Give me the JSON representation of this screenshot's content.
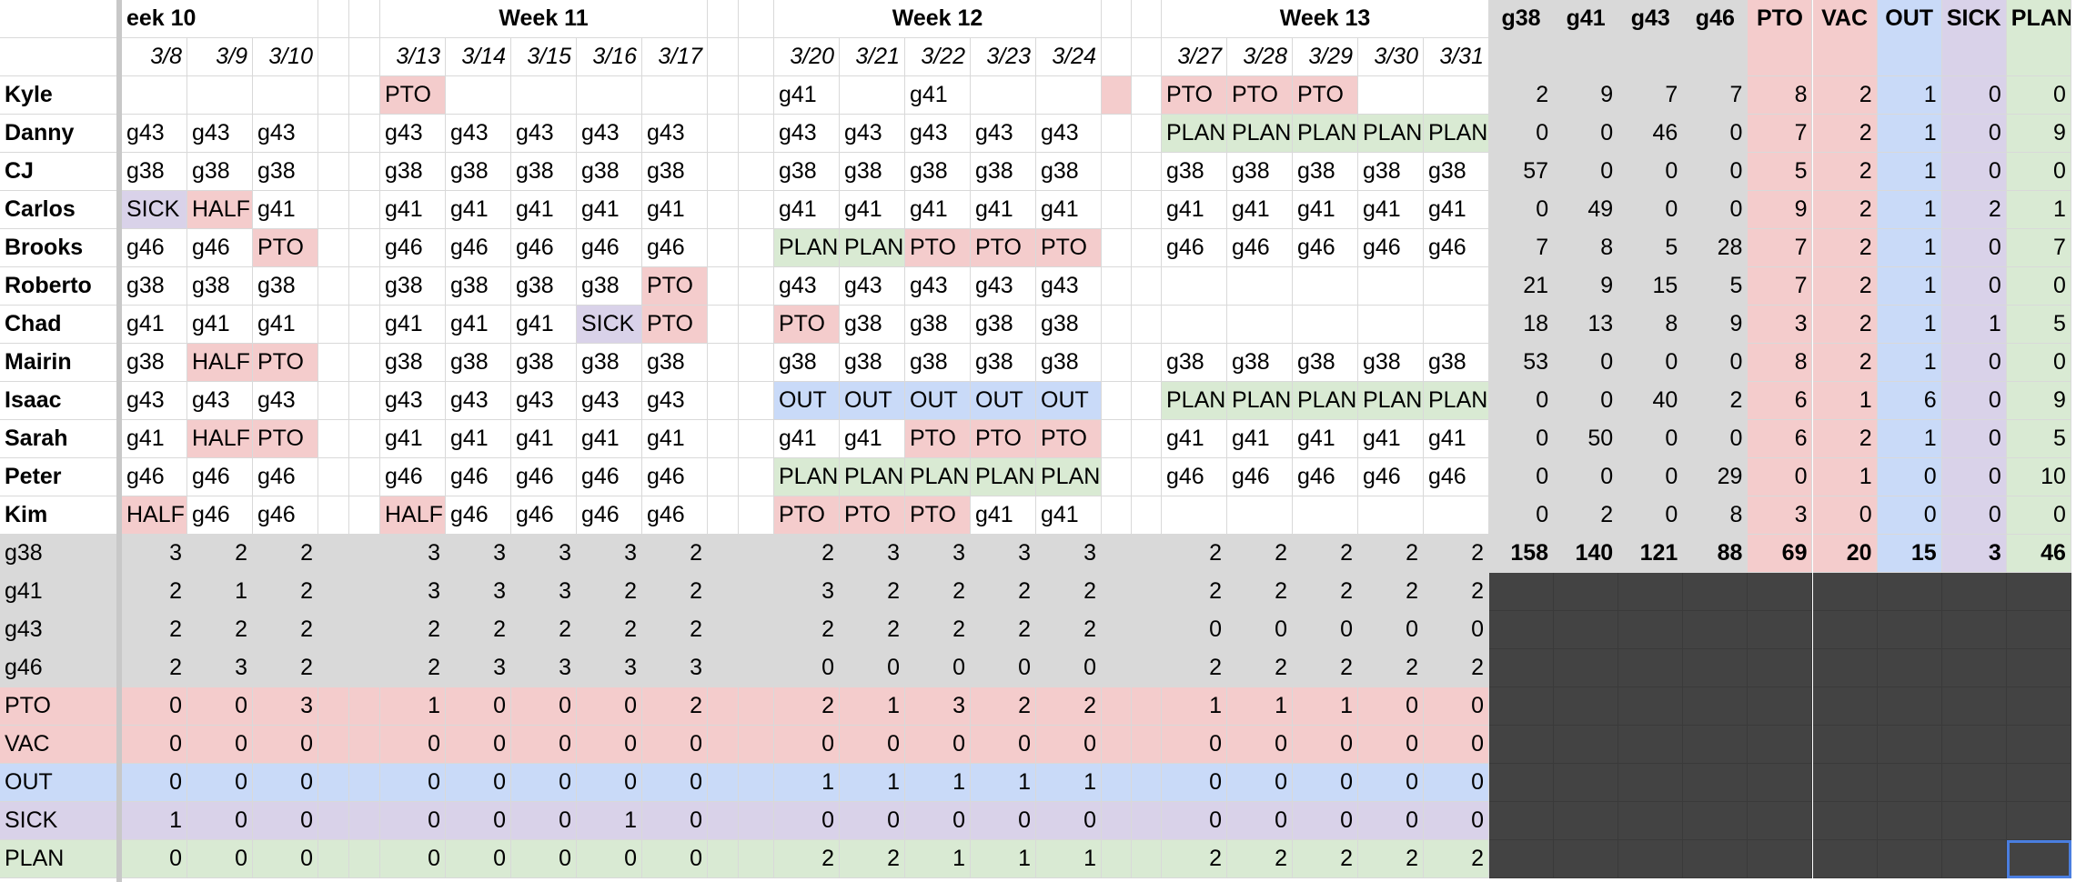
{
  "colors": {
    "gray": "#d9d9d9",
    "pto": "#f4cccc",
    "out": "#c9daf8",
    "sick": "#d9d2e9",
    "plan": "#d9ead3",
    "dark": "#434343",
    "border": "#d9d9d9",
    "selection": "#4a7ee0"
  },
  "weeks": [
    "Week 10",
    "Week 11",
    "Week 12",
    "Week 13"
  ],
  "week10_visible_label": "eek 10",
  "dates": [
    [
      "3/8",
      "3/9",
      "3/10"
    ],
    [
      "3/13",
      "3/14",
      "3/15",
      "3/16",
      "3/17"
    ],
    [
      "3/20",
      "3/21",
      "3/22",
      "3/23",
      "3/24"
    ],
    [
      "3/27",
      "3/28",
      "3/29",
      "3/30",
      "3/31"
    ]
  ],
  "summary_headers": [
    "g38",
    "g41",
    "g43",
    "g46",
    "PTO",
    "VAC",
    "OUT",
    "SICK",
    "PLAN"
  ],
  "people": [
    {
      "name": "Kyle",
      "w10": [
        "",
        "",
        ""
      ],
      "w11": [
        "PTO",
        "",
        "",
        "",
        ""
      ],
      "w12": [
        "g41",
        "",
        "g41",
        "",
        ""
      ],
      "w13": [
        "PTO",
        "PTO",
        "PTO",
        "",
        ""
      ],
      "totals": [
        2,
        9,
        7,
        7,
        8,
        2,
        1,
        0,
        0
      ]
    },
    {
      "name": "Danny",
      "w10": [
        "g43",
        "g43",
        "g43"
      ],
      "w11": [
        "g43",
        "g43",
        "g43",
        "g43",
        "g43"
      ],
      "w12": [
        "g43",
        "g43",
        "g43",
        "g43",
        "g43"
      ],
      "w13": [
        "PLAN",
        "PLAN",
        "PLAN",
        "PLAN",
        "PLAN"
      ],
      "totals": [
        0,
        0,
        46,
        0,
        7,
        2,
        1,
        0,
        9
      ]
    },
    {
      "name": "CJ",
      "w10": [
        "g38",
        "g38",
        "g38"
      ],
      "w11": [
        "g38",
        "g38",
        "g38",
        "g38",
        "g38"
      ],
      "w12": [
        "g38",
        "g38",
        "g38",
        "g38",
        "g38"
      ],
      "w13": [
        "g38",
        "g38",
        "g38",
        "g38",
        "g38"
      ],
      "totals": [
        57,
        0,
        0,
        0,
        5,
        2,
        1,
        0,
        0
      ]
    },
    {
      "name": "Carlos",
      "w10": [
        "SICK",
        "HALF",
        "g41"
      ],
      "w11": [
        "g41",
        "g41",
        "g41",
        "g41",
        "g41"
      ],
      "w12": [
        "g41",
        "g41",
        "g41",
        "g41",
        "g41"
      ],
      "w13": [
        "g41",
        "g41",
        "g41",
        "g41",
        "g41"
      ],
      "totals": [
        0,
        49,
        0,
        0,
        9,
        2,
        1,
        2,
        1
      ]
    },
    {
      "name": "Brooks",
      "w10": [
        "g46",
        "g46",
        "PTO"
      ],
      "w11": [
        "g46",
        "g46",
        "g46",
        "g46",
        "g46"
      ],
      "w12": [
        "PLAN",
        "PLAN",
        "PTO",
        "PTO",
        "PTO"
      ],
      "w13": [
        "g46",
        "g46",
        "g46",
        "g46",
        "g46"
      ],
      "totals": [
        7,
        8,
        5,
        28,
        7,
        2,
        1,
        0,
        7
      ]
    },
    {
      "name": "Roberto",
      "w10": [
        "g38",
        "g38",
        "g38"
      ],
      "w11": [
        "g38",
        "g38",
        "g38",
        "g38",
        "PTO"
      ],
      "w12": [
        "g43",
        "g43",
        "g43",
        "g43",
        "g43"
      ],
      "w13": [
        "",
        "",
        "",
        "",
        ""
      ],
      "totals": [
        21,
        9,
        15,
        5,
        7,
        2,
        1,
        0,
        0
      ]
    },
    {
      "name": "Chad",
      "w10": [
        "g41",
        "g41",
        "g41"
      ],
      "w11": [
        "g41",
        "g41",
        "g41",
        "SICK",
        "PTO"
      ],
      "w12": [
        "PTO",
        "g38",
        "g38",
        "g38",
        "g38"
      ],
      "w13": [
        "",
        "",
        "",
        "",
        ""
      ],
      "totals": [
        18,
        13,
        8,
        9,
        3,
        2,
        1,
        1,
        5
      ]
    },
    {
      "name": "Mairin",
      "w10": [
        "g38",
        "HALF",
        "PTO"
      ],
      "w11": [
        "g38",
        "g38",
        "g38",
        "g38",
        "g38"
      ],
      "w12": [
        "g38",
        "g38",
        "g38",
        "g38",
        "g38"
      ],
      "w13": [
        "g38",
        "g38",
        "g38",
        "g38",
        "g38"
      ],
      "totals": [
        53,
        0,
        0,
        0,
        8,
        2,
        1,
        0,
        0
      ]
    },
    {
      "name": "Isaac",
      "w10": [
        "g43",
        "g43",
        "g43"
      ],
      "w11": [
        "g43",
        "g43",
        "g43",
        "g43",
        "g43"
      ],
      "w12": [
        "OUT",
        "OUT",
        "OUT",
        "OUT",
        "OUT"
      ],
      "w13": [
        "PLAN",
        "PLAN",
        "PLAN",
        "PLAN",
        "PLAN"
      ],
      "totals": [
        0,
        0,
        40,
        2,
        6,
        1,
        6,
        0,
        9
      ]
    },
    {
      "name": "Sarah",
      "w10": [
        "g41",
        "HALF",
        "PTO"
      ],
      "w11": [
        "g41",
        "g41",
        "g41",
        "g41",
        "g41"
      ],
      "w12": [
        "g41",
        "g41",
        "PTO",
        "PTO",
        "PTO"
      ],
      "w13": [
        "g41",
        "g41",
        "g41",
        "g41",
        "g41"
      ],
      "totals": [
        0,
        50,
        0,
        0,
        6,
        2,
        1,
        0,
        5
      ]
    },
    {
      "name": "Peter",
      "w10": [
        "g46",
        "g46",
        "g46"
      ],
      "w11": [
        "g46",
        "g46",
        "g46",
        "g46",
        "g46"
      ],
      "w12": [
        "PLAN",
        "PLAN",
        "PLAN",
        "PLAN",
        "PLAN"
      ],
      "w13": [
        "g46",
        "g46",
        "g46",
        "g46",
        "g46"
      ],
      "totals": [
        0,
        0,
        0,
        29,
        0,
        1,
        0,
        0,
        10
      ]
    },
    {
      "name": "Kim",
      "w10": [
        "HALF",
        "g46",
        "g46"
      ],
      "w11": [
        "HALF",
        "g46",
        "g46",
        "g46",
        "g46"
      ],
      "w12": [
        "PTO",
        "PTO",
        "PTO",
        "g41",
        "g41"
      ],
      "w13": [
        "",
        "",
        "",
        "",
        ""
      ],
      "totals": [
        0,
        2,
        0,
        8,
        3,
        0,
        0,
        0,
        0
      ]
    }
  ],
  "grand_totals": [
    158,
    140,
    121,
    88,
    69,
    20,
    15,
    3,
    46
  ],
  "count_rows": [
    {
      "label": "g38",
      "w10": [
        3,
        2,
        2
      ],
      "w11": [
        3,
        3,
        3,
        3,
        2
      ],
      "w12": [
        2,
        3,
        3,
        3,
        3
      ],
      "w13": [
        2,
        2,
        2,
        2,
        2
      ]
    },
    {
      "label": "g41",
      "w10": [
        2,
        1,
        2
      ],
      "w11": [
        3,
        3,
        3,
        2,
        2
      ],
      "w12": [
        3,
        2,
        2,
        2,
        2
      ],
      "w13": [
        2,
        2,
        2,
        2,
        2
      ]
    },
    {
      "label": "g43",
      "w10": [
        2,
        2,
        2
      ],
      "w11": [
        2,
        2,
        2,
        2,
        2
      ],
      "w12": [
        2,
        2,
        2,
        2,
        2
      ],
      "w13": [
        0,
        0,
        0,
        0,
        0
      ]
    },
    {
      "label": "g46",
      "w10": [
        2,
        3,
        2
      ],
      "w11": [
        2,
        3,
        3,
        3,
        3
      ],
      "w12": [
        0,
        0,
        0,
        0,
        0
      ],
      "w13": [
        2,
        2,
        2,
        2,
        2
      ]
    },
    {
      "label": "PTO",
      "w10": [
        0,
        0,
        3
      ],
      "w11": [
        1,
        0,
        0,
        0,
        2
      ],
      "w12": [
        2,
        1,
        3,
        2,
        2
      ],
      "w13": [
        1,
        1,
        1,
        0,
        0
      ]
    },
    {
      "label": "VAC",
      "w10": [
        0,
        0,
        0
      ],
      "w11": [
        0,
        0,
        0,
        0,
        0
      ],
      "w12": [
        0,
        0,
        0,
        0,
        0
      ],
      "w13": [
        0,
        0,
        0,
        0,
        0
      ]
    },
    {
      "label": "OUT",
      "w10": [
        0,
        0,
        0
      ],
      "w11": [
        0,
        0,
        0,
        0,
        0
      ],
      "w12": [
        1,
        1,
        1,
        1,
        1
      ],
      "w13": [
        0,
        0,
        0,
        0,
        0
      ]
    },
    {
      "label": "SICK",
      "w10": [
        1,
        0,
        0
      ],
      "w11": [
        0,
        0,
        0,
        1,
        0
      ],
      "w12": [
        0,
        0,
        0,
        0,
        0
      ],
      "w13": [
        0,
        0,
        0,
        0,
        0
      ]
    },
    {
      "label": "PLAN",
      "w10": [
        0,
        0,
        0
      ],
      "w11": [
        0,
        0,
        0,
        0,
        0
      ],
      "w12": [
        2,
        2,
        1,
        1,
        1
      ],
      "w13": [
        2,
        2,
        2,
        2,
        2
      ]
    }
  ]
}
